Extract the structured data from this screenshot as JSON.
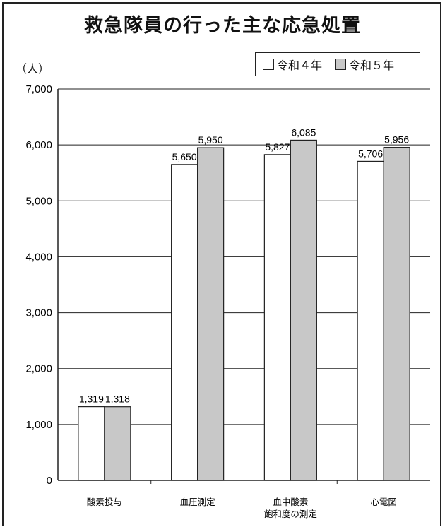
{
  "chart_data": {
    "type": "bar",
    "title": "救急隊員の行った主な応急処置",
    "ylabel": "（人）",
    "xlabel": "",
    "ylim": [
      0,
      7000
    ],
    "yticks": [
      "0",
      "1,000",
      "2,000",
      "3,000",
      "4,000",
      "5,000",
      "6,000",
      "7,000"
    ],
    "grid": true,
    "legend_position": "top-right",
    "categories": [
      [
        "酸素投与"
      ],
      [
        "血圧測定"
      ],
      [
        "血中酸素",
        "飽和度の測定"
      ],
      [
        "心電図"
      ]
    ],
    "series": [
      {
        "name": "令和４年",
        "color": "#ffffff",
        "values": [
          1319,
          5650,
          5827,
          5706
        ],
        "labels": [
          "1,319",
          "5,650",
          "5,827",
          "5,706"
        ]
      },
      {
        "name": "令和５年",
        "color": "#c8c8c8",
        "values": [
          1318,
          5950,
          6085,
          5956
        ],
        "labels": [
          "1,318",
          "5,950",
          "6,085",
          "5,956"
        ]
      }
    ]
  }
}
